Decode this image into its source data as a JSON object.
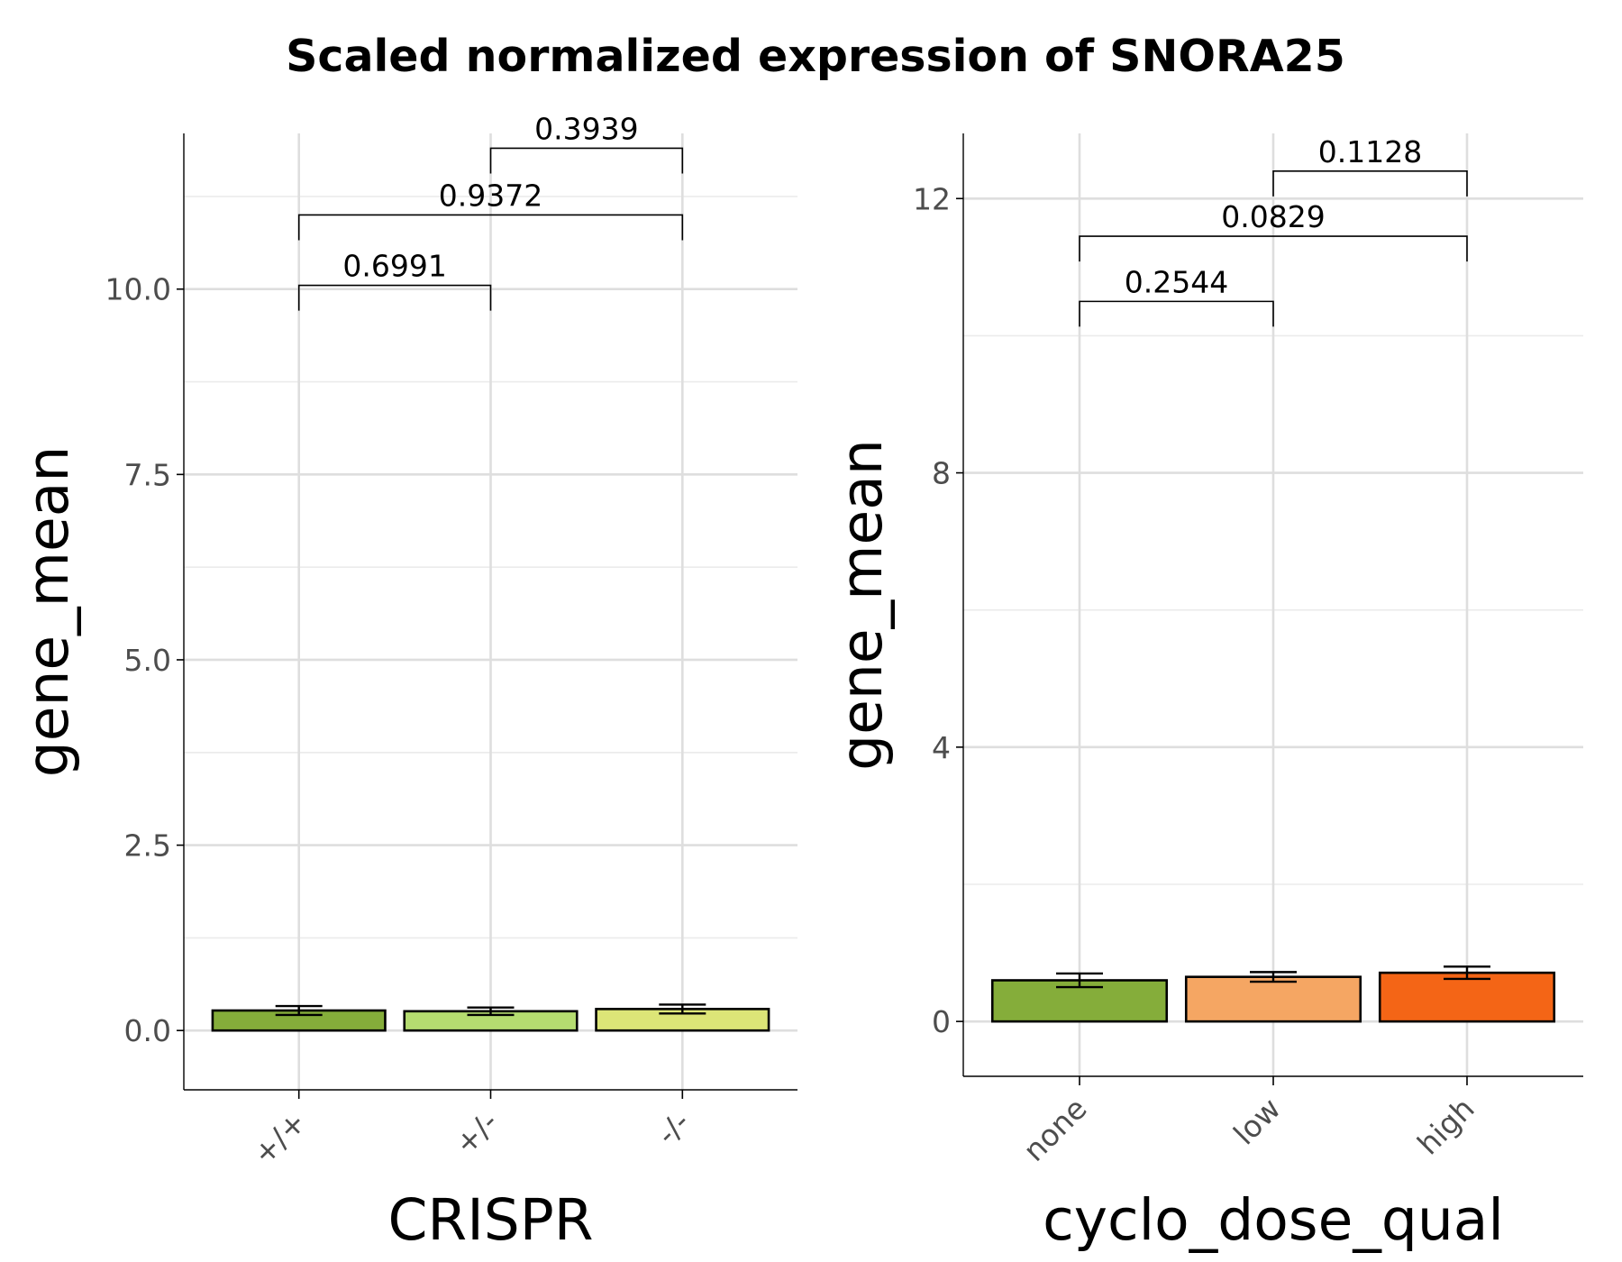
{
  "title": "Scaled normalized expression of SNORA25",
  "chart_data": [
    {
      "type": "bar",
      "xlabel": "CRISPR",
      "ylabel": "gene_mean",
      "categories": [
        "+/+",
        "+/-",
        "-/-"
      ],
      "values": [
        0.27,
        0.26,
        0.29
      ],
      "errors": [
        0.06,
        0.05,
        0.06
      ],
      "colors": [
        "#85ad3a",
        "#b5dc70",
        "#dce577"
      ],
      "ylim": [
        -0.8,
        12.1
      ],
      "yticks": [
        0.0,
        2.5,
        5.0,
        7.5,
        10.0
      ],
      "ytick_labels": [
        "0.0",
        "2.5",
        "5.0",
        "7.5",
        "10.0"
      ],
      "grid": true,
      "comparisons": [
        {
          "from": 0,
          "to": 1,
          "y": 10.05,
          "label": "0.6991"
        },
        {
          "from": 0,
          "to": 2,
          "y": 11.0,
          "label": "0.9372"
        },
        {
          "from": 1,
          "to": 2,
          "y": 11.9,
          "label": "0.3939"
        }
      ]
    },
    {
      "type": "bar",
      "xlabel": "cyclo_dose_qual",
      "ylabel": "gene_mean",
      "categories": [
        "none",
        "low",
        "high"
      ],
      "values": [
        0.6,
        0.65,
        0.71
      ],
      "errors": [
        0.1,
        0.07,
        0.09
      ],
      "colors": [
        "#85ad3a",
        "#f5a663",
        "#f46516"
      ],
      "ylim": [
        -0.8,
        12.95
      ],
      "yticks": [
        0,
        4,
        8,
        12
      ],
      "ytick_labels": [
        "0",
        "4",
        "8",
        "12"
      ],
      "grid": true,
      "comparisons": [
        {
          "from": 0,
          "to": 1,
          "y": 10.5,
          "label": "0.2544"
        },
        {
          "from": 0,
          "to": 2,
          "y": 11.45,
          "label": "0.0829"
        },
        {
          "from": 1,
          "to": 2,
          "y": 12.4,
          "label": "0.1128"
        }
      ]
    }
  ]
}
